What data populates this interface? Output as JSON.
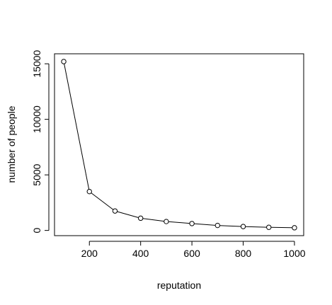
{
  "chart_data": {
    "type": "line",
    "title": "",
    "xlabel": "reputation",
    "ylabel": "number of people",
    "x": [
      100,
      200,
      300,
      400,
      500,
      600,
      700,
      800,
      900,
      1000
    ],
    "series": [
      {
        "values": [
          15200,
          3500,
          1750,
          1100,
          800,
          620,
          450,
          350,
          280,
          240
        ]
      }
    ],
    "xlim": [
      64,
      1036
    ],
    "ylim": [
      -470,
      15900
    ],
    "xticks": [
      200,
      400,
      600,
      800,
      1000
    ],
    "yticks": [
      0,
      5000,
      10000,
      15000
    ],
    "xtick_labels": [
      "200",
      "400",
      "600",
      "800",
      "1000"
    ],
    "ytick_labels": [
      "0",
      "5000",
      "10000",
      "15000"
    ],
    "markers": "open-circle",
    "grid": false,
    "legend": "none",
    "colors": {
      "line": "#000000",
      "marker_fill": "#ffffff",
      "axis": "#000000"
    }
  }
}
